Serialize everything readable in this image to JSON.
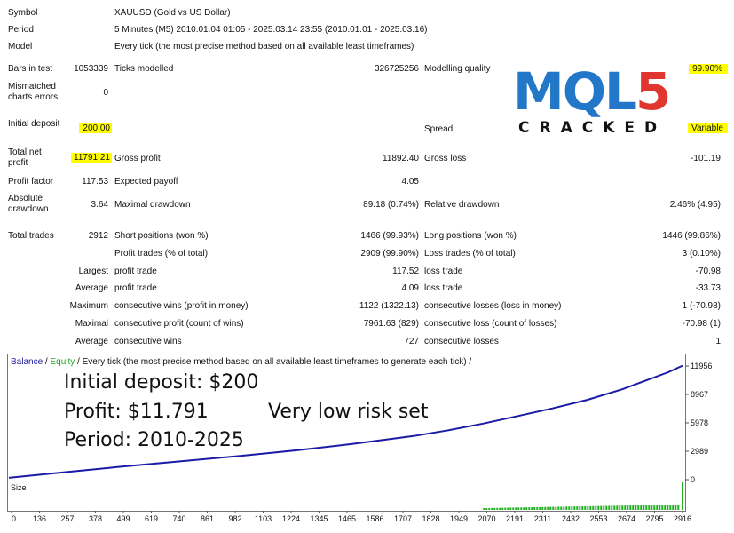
{
  "report": {
    "symbol_label": "Symbol",
    "symbol_value": "XAUUSD (Gold vs US Dollar)",
    "period_label": "Period",
    "period_value": "5 Minutes (M5) 2010.01.04 01:05 - 2025.03.14 23:55 (2010.01.01 - 2025.03.16)",
    "model_label": "Model",
    "model_value": "Every tick (the most precise method based on all available least timeframes)",
    "bars_label": "Bars in test",
    "bars_value": "1053339",
    "ticks_label": "Ticks modelled",
    "ticks_value": "326725256",
    "quality_label": "Modelling quality",
    "quality_value": "99.90%",
    "mismatch_label": "Mismatched charts errors",
    "mismatch_value": "0",
    "deposit_label": "Initial deposit",
    "deposit_value": "200.00",
    "spread_label": "Spread",
    "spread_value": "Variable",
    "netprofit_label": "Total net profit",
    "netprofit_value": "11791.21",
    "grossprofit_label": "Gross profit",
    "grossprofit_value": "11892.40",
    "grossloss_label": "Gross loss",
    "grossloss_value": "-101.19",
    "pf_label": "Profit factor",
    "pf_value": "117.53",
    "payoff_label": "Expected payoff",
    "payoff_value": "4.05",
    "absdd_label": "Absolute drawdown",
    "absdd_value": "3.64",
    "maxdd_label": "Maximal drawdown",
    "maxdd_value": "89.18 (0.74%)",
    "reldd_label": "Relative drawdown",
    "reldd_value": "2.46% (4.95)",
    "trades_label": "Total trades",
    "trades_value": "2912",
    "short_label": "Short positions (won %)",
    "short_value": "1466 (99.93%)",
    "long_label": "Long positions (won %)",
    "long_value": "1446 (99.86%)",
    "ptrades_label": "Profit trades (% of total)",
    "ptrades_value": "2909 (99.90%)",
    "ltrades_label": "Loss trades (% of total)",
    "ltrades_value": "3 (0.10%)",
    "largest_label": "Largest",
    "largest_profit_label": "profit trade",
    "largest_profit_value": "117.52",
    "largest_loss_label": "loss trade",
    "largest_loss_value": "-70.98",
    "average_label": "Average",
    "average_profit_label": "profit trade",
    "average_profit_value": "4.09",
    "average_loss_label": "loss trade",
    "average_loss_value": "-33.73",
    "maximum_label": "Maximum",
    "max_wins_label": "consecutive wins (profit in money)",
    "max_wins_value": "1122 (1322.13)",
    "max_losses_label": "consecutive losses (loss in money)",
    "max_losses_value": "1 (-70.98)",
    "maximal_label": "Maximal",
    "maximal_profit_label": "consecutive profit (count of wins)",
    "maximal_profit_value": "7961.63 (829)",
    "maximal_loss_label": "consecutive loss (count of losses)",
    "maximal_loss_value": "-70.98 (1)",
    "avg2_label": "Average",
    "avg_wins_label": "consecutive wins",
    "avg_wins_value": "727",
    "avg_losses_label": "consecutive losses",
    "avg_losses_value": "1"
  },
  "logo": {
    "mql": "MQL",
    "five": "5",
    "sub": "CRACKED"
  },
  "overlay": {
    "line1": "Initial deposit: $200",
    "line2": "Profit: $11.791",
    "line3": "Period: 2010-2025",
    "note": "Very low risk set"
  },
  "chart_data": {
    "type": "line",
    "legend_balance": "Balance",
    "legend_sep1": " / ",
    "legend_equity": "Equity",
    "legend_rest": " / Every tick (the most precise method based on all available least timeframes to generate each tick) /",
    "y_ticks": [
      "11956",
      "8967",
      "5978",
      "2989",
      "0"
    ],
    "ylim": [
      0,
      11956
    ],
    "x_ticks": [
      "0",
      "136",
      "257",
      "378",
      "499",
      "619",
      "740",
      "861",
      "982",
      "1103",
      "1224",
      "1345",
      "1465",
      "1586",
      "1707",
      "1828",
      "1949",
      "2070",
      "2191",
      "2311",
      "2432",
      "2553",
      "2674",
      "2795",
      "2916"
    ],
    "xlim": [
      0,
      2916
    ],
    "size_label": "Size",
    "series": [
      {
        "name": "Balance",
        "color": "#1a1aa6",
        "x": [
          0,
          250,
          500,
          750,
          1000,
          1250,
          1500,
          1750,
          1900,
          2050,
          2200,
          2350,
          2500,
          2650,
          2750,
          2850,
          2912
        ],
        "values": [
          200,
          800,
          1400,
          1950,
          2500,
          3100,
          3800,
          4600,
          5200,
          5900,
          6700,
          7500,
          8400,
          9500,
          10400,
          11300,
          11991
        ]
      }
    ],
    "colors": {
      "balance": "#1a1aa6",
      "equity": "#22a622",
      "size": "#22b022"
    }
  }
}
